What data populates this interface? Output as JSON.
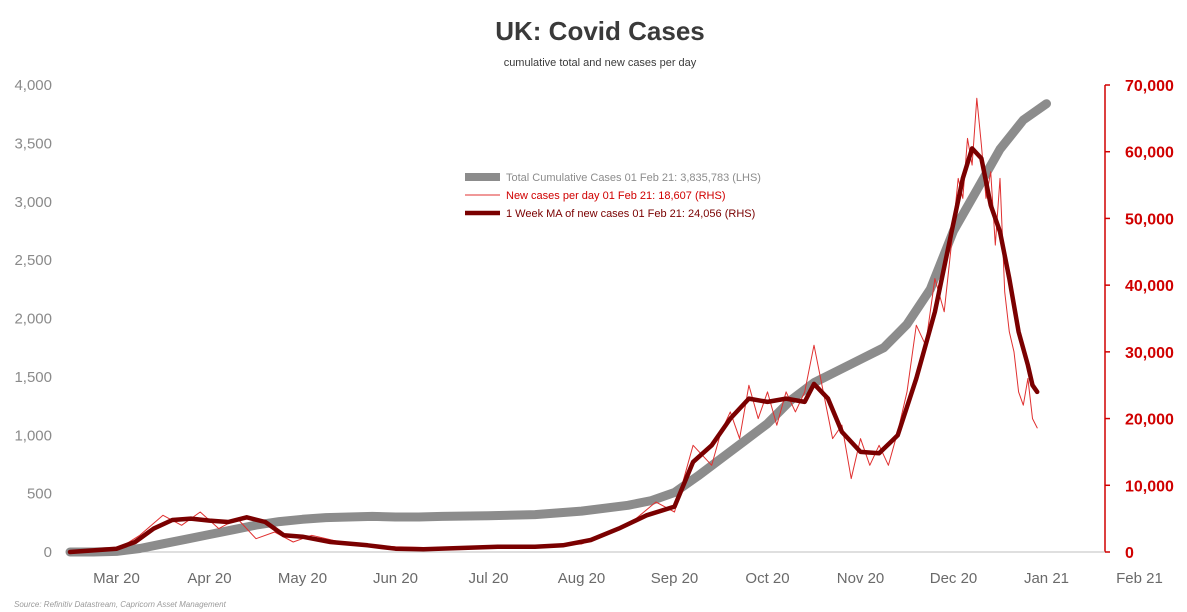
{
  "chart_data": {
    "type": "line",
    "title": "UK: Covid Cases",
    "subtitle": "cumulative total and new cases per day",
    "source": "Source: Refinitiv Datastream, Capricorn Asset Management",
    "x_categories": [
      "Mar 20",
      "Apr 20",
      "May 20",
      "Jun 20",
      "Jul 20",
      "Aug 20",
      "Sep 20",
      "Oct 20",
      "Nov 20",
      "Dec 20",
      "Jan 21",
      "Feb 21"
    ],
    "y_left": {
      "lim": [
        0,
        4000
      ],
      "ticks": [
        "0",
        "500",
        "1,000",
        "1,500",
        "2,000",
        "2,500",
        "3,000",
        "3,500",
        "4,000"
      ],
      "tick_values": [
        0,
        500,
        1000,
        1500,
        2000,
        2500,
        3000,
        3500,
        4000
      ]
    },
    "y_right": {
      "lim": [
        0,
        70000
      ],
      "ticks": [
        "0",
        "10,000",
        "20,000",
        "30,000",
        "40,000",
        "50,000",
        "60,000",
        "70,000"
      ],
      "tick_values": [
        0,
        10000,
        20000,
        30000,
        40000,
        50000,
        60000,
        70000
      ]
    },
    "colors": {
      "cumulative": "#8c8c8c",
      "daily": "#e03030",
      "ma": "#7a0000",
      "right_axis": "#d00000"
    },
    "series": [
      {
        "name": "Total Cumulative Cases 01 Feb 21: 3,835,783 (LHS)",
        "axis": "left",
        "x": [
          0,
          0.25,
          0.5,
          0.75,
          1.0,
          1.25,
          1.5,
          1.75,
          2.0,
          2.25,
          2.5,
          2.75,
          3.0,
          3.25,
          3.5,
          3.75,
          4.0,
          4.5,
          5.0,
          5.5,
          6.0,
          6.25,
          6.5,
          6.75,
          7.0,
          7.25,
          7.5,
          7.75,
          8.0,
          8.25,
          8.5,
          8.75,
          9.0,
          9.25,
          9.5,
          9.75,
          10.0,
          10.25,
          10.5
        ],
        "y": [
          0,
          0,
          5,
          30,
          70,
          110,
          150,
          190,
          230,
          260,
          280,
          295,
          300,
          305,
          300,
          300,
          305,
          310,
          320,
          350,
          400,
          440,
          510,
          650,
          800,
          950,
          1100,
          1300,
          1450,
          1550,
          1650,
          1750,
          1950,
          2250,
          2750,
          3100,
          3450,
          3700,
          3840
        ]
      },
      {
        "name": "New cases per day 01 Feb 21: 18,607 (RHS)",
        "axis": "right",
        "x": [
          0,
          0.5,
          0.75,
          1.0,
          1.2,
          1.4,
          1.6,
          1.8,
          2.0,
          2.2,
          2.4,
          2.6,
          3.0,
          3.5,
          4.0,
          4.5,
          5.0,
          5.5,
          6.0,
          6.3,
          6.5,
          6.7,
          6.9,
          7.0,
          7.1,
          7.2,
          7.3,
          7.4,
          7.5,
          7.6,
          7.7,
          7.8,
          7.9,
          8.0,
          8.1,
          8.2,
          8.3,
          8.4,
          8.5,
          8.6,
          8.7,
          8.8,
          8.9,
          9.0,
          9.1,
          9.2,
          9.3,
          9.4,
          9.5,
          9.55,
          9.6,
          9.65,
          9.7,
          9.75,
          9.8,
          9.85,
          9.9,
          9.95,
          10.0,
          10.05,
          10.1,
          10.15,
          10.2,
          10.25,
          10.3,
          10.35,
          10.4
        ],
        "y": [
          0,
          300,
          2500,
          5500,
          4000,
          6000,
          3500,
          5000,
          2000,
          3000,
          1500,
          2500,
          1200,
          800,
          600,
          700,
          900,
          1200,
          4000,
          7500,
          6000,
          16000,
          13000,
          18000,
          21000,
          17000,
          25000,
          20000,
          24000,
          19000,
          24000,
          21000,
          24000,
          31000,
          24000,
          17000,
          19000,
          11000,
          17000,
          13000,
          16000,
          13000,
          18000,
          24000,
          34000,
          31000,
          41000,
          36000,
          49000,
          56000,
          53000,
          62000,
          58000,
          68000,
          61000,
          53000,
          57000,
          46000,
          56000,
          39000,
          33000,
          30000,
          24000,
          22000,
          26000,
          20000,
          18600
        ]
      },
      {
        "name": "1 Week MA of new cases 01 Feb 21: 24,056 (RHS)",
        "axis": "right",
        "x": [
          0,
          0.5,
          0.7,
          0.9,
          1.1,
          1.3,
          1.5,
          1.7,
          1.9,
          2.1,
          2.3,
          2.5,
          2.8,
          3.2,
          3.5,
          3.8,
          4.2,
          4.6,
          5.0,
          5.3,
          5.6,
          5.9,
          6.2,
          6.5,
          6.7,
          6.9,
          7.1,
          7.3,
          7.5,
          7.7,
          7.9,
          8.0,
          8.15,
          8.3,
          8.5,
          8.7,
          8.9,
          9.1,
          9.3,
          9.45,
          9.6,
          9.7,
          9.8,
          9.9,
          10.0,
          10.1,
          10.2,
          10.3,
          10.35,
          10.4
        ],
        "y": [
          0,
          500,
          1500,
          3500,
          4800,
          5000,
          4700,
          4500,
          5200,
          4500,
          2500,
          2300,
          1500,
          1000,
          500,
          400,
          600,
          800,
          800,
          1000,
          1800,
          3500,
          5500,
          6800,
          13500,
          16000,
          20000,
          23000,
          22500,
          23000,
          22500,
          25200,
          23000,
          18000,
          15000,
          14800,
          17500,
          26000,
          36000,
          46000,
          56000,
          60500,
          59000,
          52000,
          48000,
          41000,
          33000,
          28000,
          25000,
          24000
        ]
      }
    ]
  }
}
